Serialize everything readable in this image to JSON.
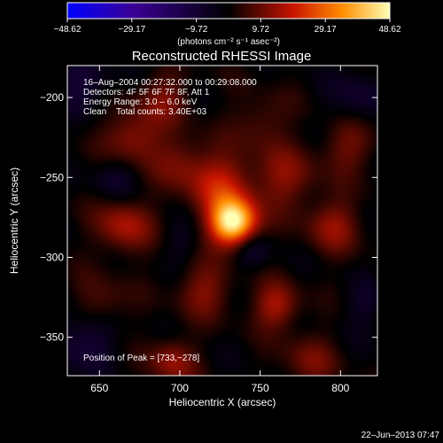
{
  "chart_data": {
    "type": "heatmap",
    "title": "Reconstructed RHESSI Image",
    "xlabel": "Heliocentric X (arcsec)",
    "ylabel": "Heliocentric Y (arcsec)",
    "xlim": [
      630,
      823
    ],
    "ylim": [
      -374,
      -180
    ],
    "xticks": [
      650,
      700,
      750,
      800
    ],
    "yticks": [
      -200,
      -250,
      -300,
      -350
    ],
    "ytick_labels": [
      "−200",
      "−250",
      "−300",
      "−350"
    ],
    "colorbar": {
      "min": -48.62,
      "max": 48.62,
      "tick_values": [
        -48.62,
        -29.17,
        -9.72,
        9.72,
        29.17,
        48.62
      ],
      "tick_labels": [
        "−48.62",
        "−29.17",
        "−9.72",
        "9.72",
        "29.17",
        "48.62"
      ],
      "unit_label": "(photons cm⁻² s⁻¹ asec⁻²)",
      "colors": [
        "#0000ff",
        "#3a0096",
        "#000000",
        "#c81400",
        "#ff8c00",
        "#ffffb4"
      ]
    },
    "annotations": [
      "16–Aug–2004 00:27:32.000 to 00:29:08.000",
      "Detectors: 4F 5F 6F 7F 8F, Att 1",
      "Energy Range: 3.0 – 6.0 keV",
      "Clean    Total counts: 3.40E+03"
    ],
    "peak_label": "Position of Peak = [733,−278]",
    "peak": {
      "x": 733,
      "y": -278,
      "value": 48.62
    },
    "sources": [
      {
        "x": 733,
        "y": -278,
        "amp": 48,
        "sigma": 10
      },
      {
        "x": 725,
        "y": -255,
        "amp": 18,
        "sigma": 14
      },
      {
        "x": 765,
        "y": -250,
        "amp": 12,
        "sigma": 14
      },
      {
        "x": 665,
        "y": -280,
        "amp": 16,
        "sigma": 12
      },
      {
        "x": 670,
        "y": -225,
        "amp": 14,
        "sigma": 12
      },
      {
        "x": 700,
        "y": -240,
        "amp": 10,
        "sigma": 12
      },
      {
        "x": 795,
        "y": -280,
        "amp": 13,
        "sigma": 12
      },
      {
        "x": 805,
        "y": -230,
        "amp": 10,
        "sigma": 12
      },
      {
        "x": 760,
        "y": -330,
        "amp": 16,
        "sigma": 10
      },
      {
        "x": 695,
        "y": -365,
        "amp": 14,
        "sigma": 10
      },
      {
        "x": 715,
        "y": -320,
        "amp": 12,
        "sigma": 12
      },
      {
        "x": 650,
        "y": -330,
        "amp": 10,
        "sigma": 12
      },
      {
        "x": 780,
        "y": -365,
        "amp": 10,
        "sigma": 12
      },
      {
        "x": 690,
        "y": -200,
        "amp": 10,
        "sigma": 12
      },
      {
        "x": 750,
        "y": -215,
        "amp": 8,
        "sigma": 12
      },
      {
        "x": 640,
        "y": -190,
        "amp": -10,
        "sigma": 12
      },
      {
        "x": 660,
        "y": -250,
        "amp": -7,
        "sigma": 10
      },
      {
        "x": 640,
        "y": -350,
        "amp": -12,
        "sigma": 14
      },
      {
        "x": 745,
        "y": -295,
        "amp": -9,
        "sigma": 8
      },
      {
        "x": 810,
        "y": -200,
        "amp": -8,
        "sigma": 12
      },
      {
        "x": 815,
        "y": -330,
        "amp": -6,
        "sigma": 10
      },
      {
        "x": 700,
        "y": -290,
        "amp": -5,
        "sigma": 8
      }
    ]
  },
  "footer": {
    "timestamp": "22–Jun–2013 07:47"
  }
}
